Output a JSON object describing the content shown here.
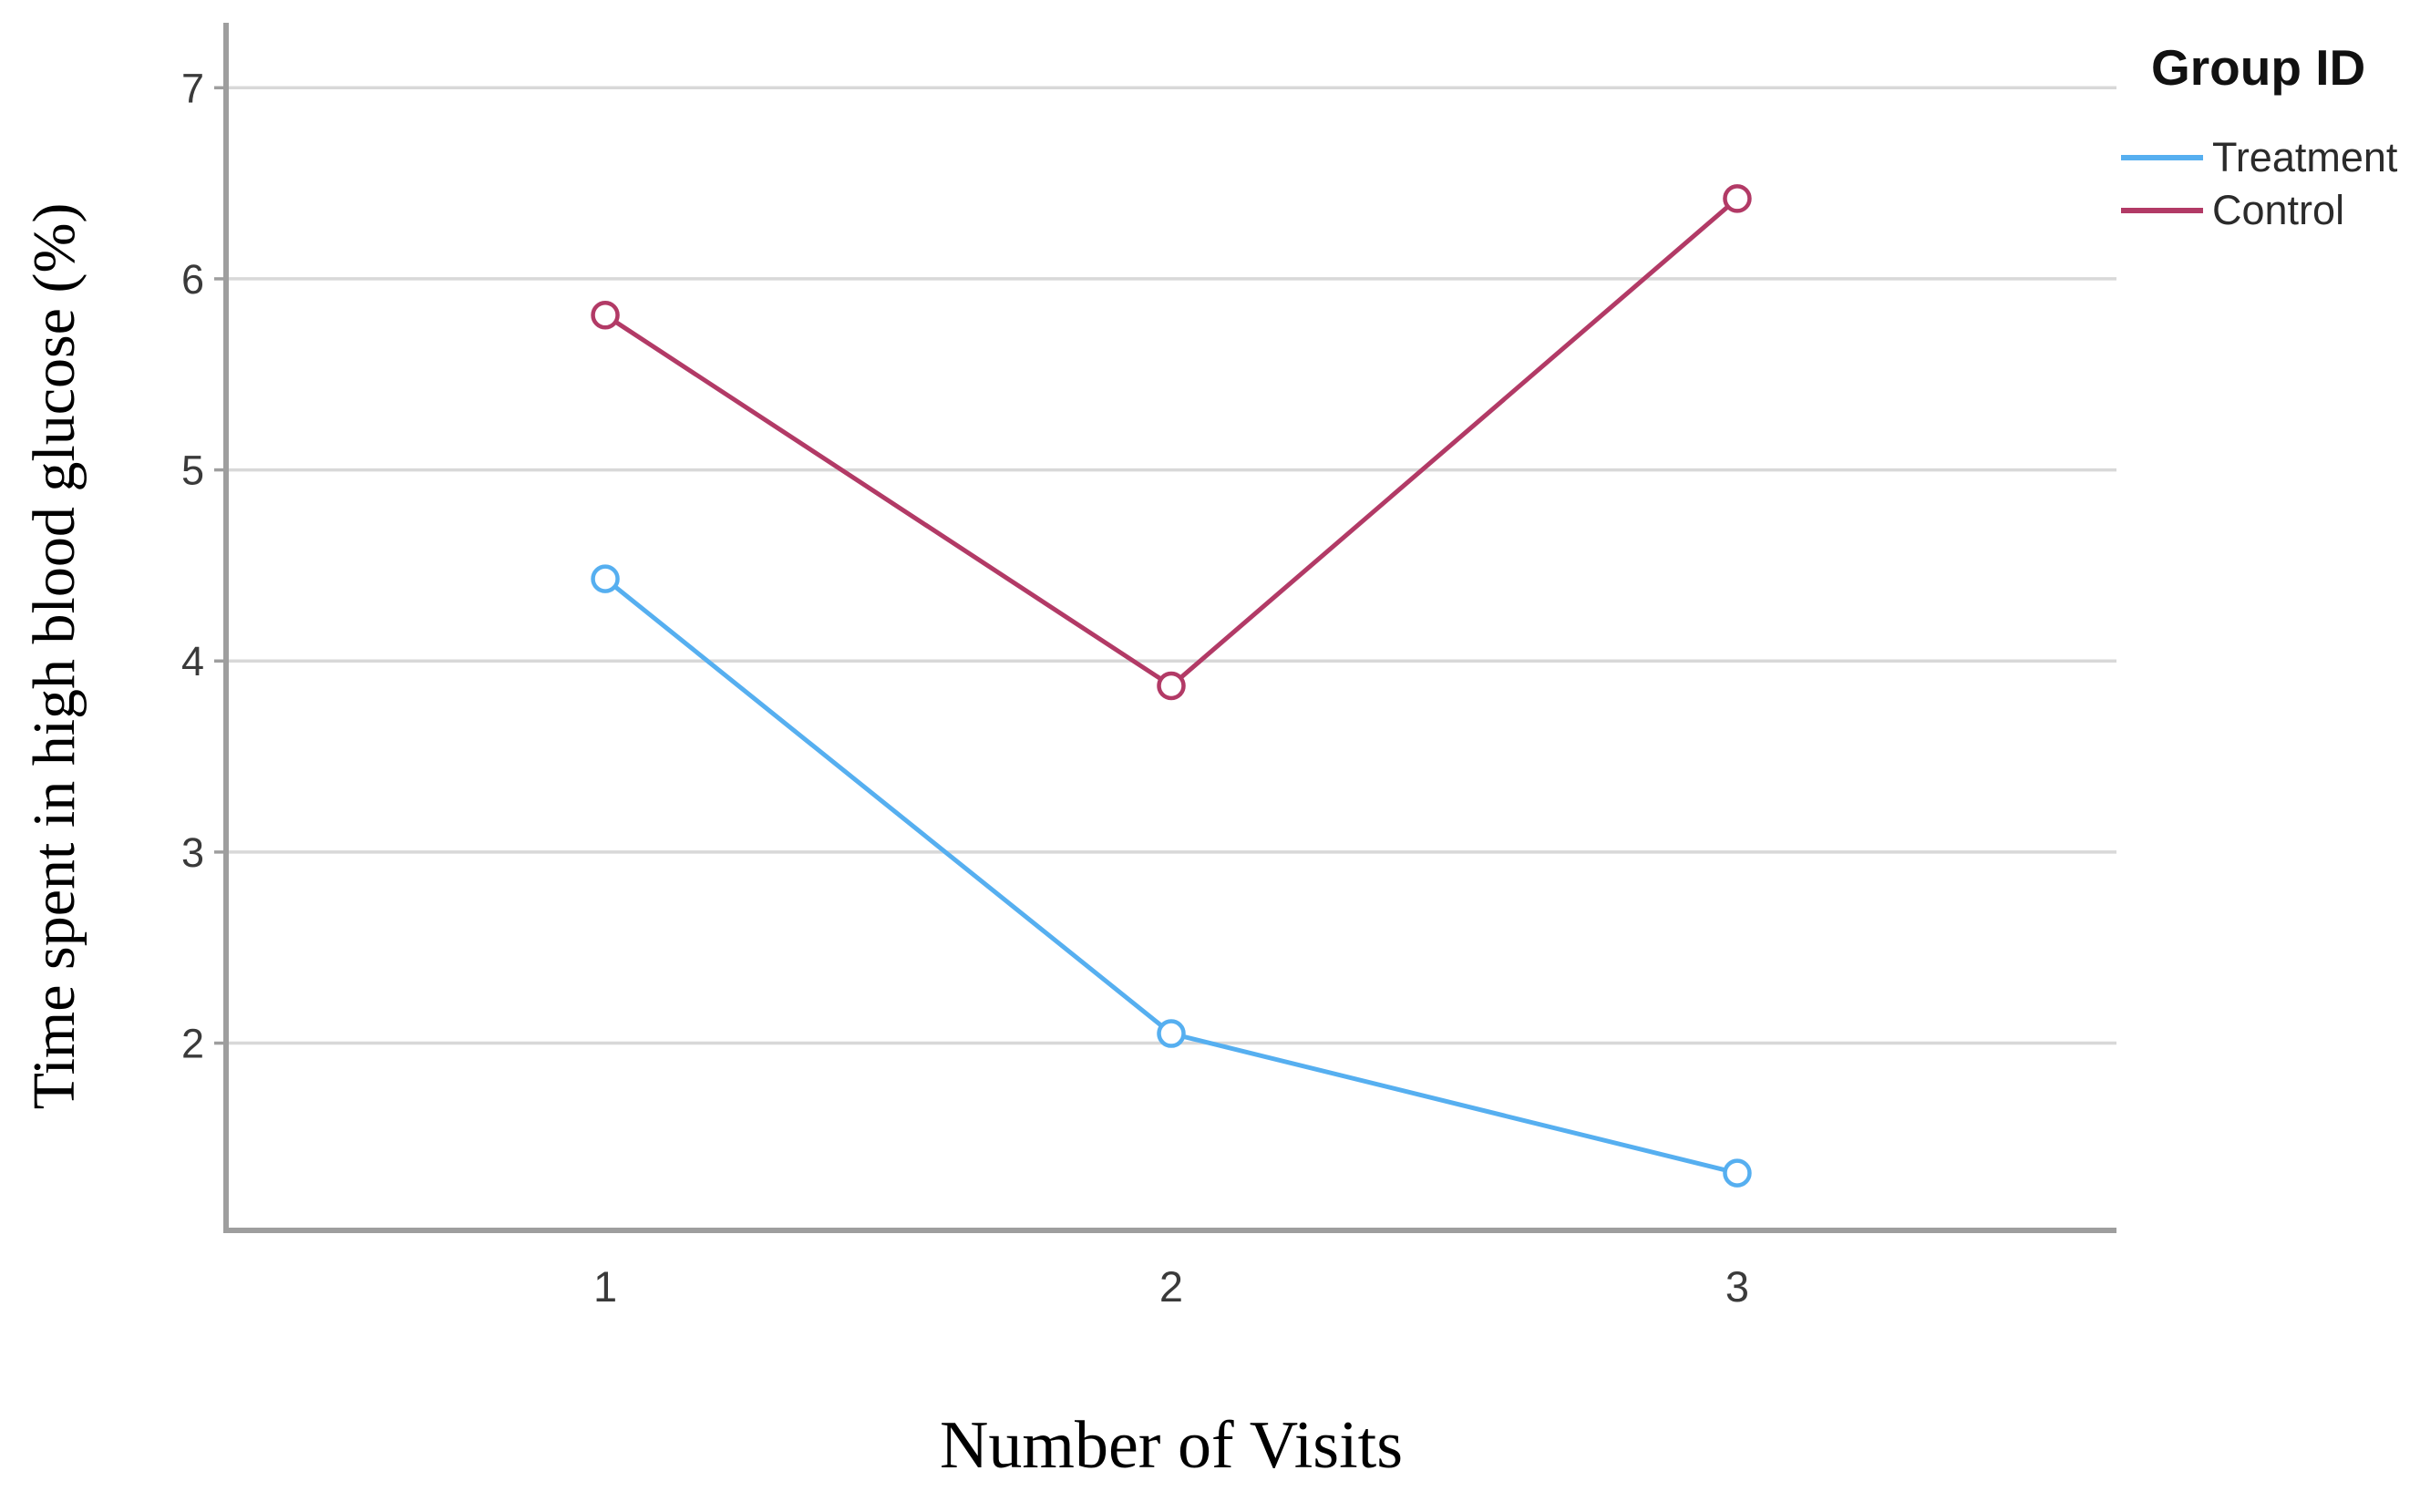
{
  "figure": {
    "xlabel": "Number of Visits",
    "ylabel": "Time spent in high blood glucose (%)",
    "legend": {
      "title": "Group ID",
      "items": [
        {
          "label": "Treatment",
          "color": "#56AFF0"
        },
        {
          "label": "Control",
          "color": "#B23A66"
        }
      ]
    }
  },
  "chart_data": {
    "type": "line",
    "title": "",
    "xlabel": "Number of Visits",
    "ylabel": "Time spent in high blood glucose (%)",
    "x": [
      1,
      2,
      3
    ],
    "xticks": [
      1,
      2,
      3
    ],
    "yticks": [
      2,
      3,
      4,
      5,
      6,
      7
    ],
    "xlim": [
      0.33,
      3.67
    ],
    "ylim": [
      1.02,
      7.34
    ],
    "grid": "horizontal-only",
    "legend_title": "Group ID",
    "legend_position": "outside-top-right",
    "marker": "open-circle",
    "series": [
      {
        "name": "Treatment",
        "color": "#56AFF0",
        "values": [
          4.43,
          2.05,
          1.32
        ]
      },
      {
        "name": "Control",
        "color": "#B23A66",
        "values": [
          5.81,
          3.87,
          6.42
        ]
      }
    ],
    "colors": {
      "gridline": "#D8D8D8",
      "axis": "#9E9E9E",
      "tick_label": "#3A3A3A"
    }
  }
}
